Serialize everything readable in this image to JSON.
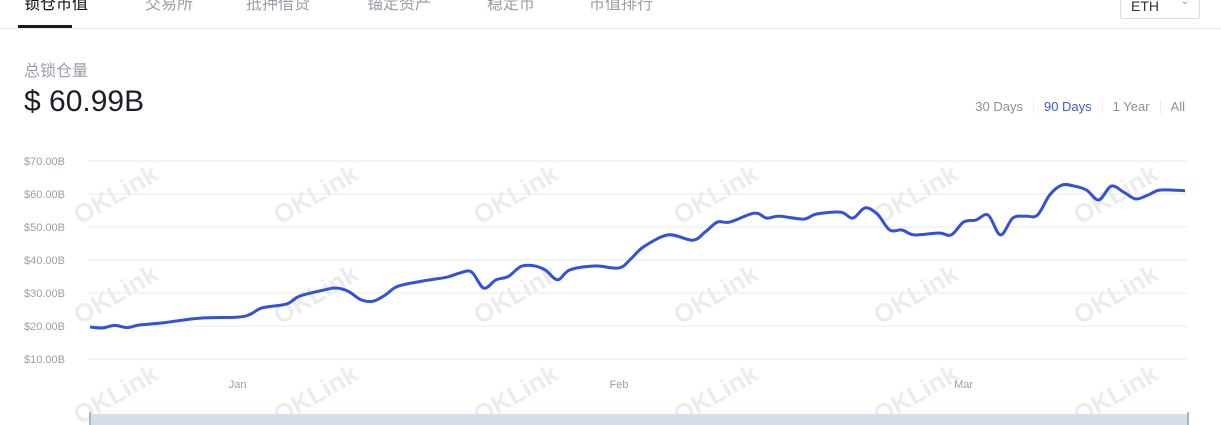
{
  "tabs": [
    {
      "label": "锁仓市值",
      "active": true
    },
    {
      "label": "交易所"
    },
    {
      "label": "抵押借贷"
    },
    {
      "label": "锚定资产"
    },
    {
      "label": "稳定币"
    },
    {
      "label": "市值排行"
    }
  ],
  "chain_select": {
    "value": "ETH",
    "icon": "chevron-down-icon"
  },
  "summary": {
    "label": "总锁仓量",
    "value": "$ 60.99B"
  },
  "ranges": [
    {
      "label": "30 Days"
    },
    {
      "label": "90 Days",
      "selected": true
    },
    {
      "label": "1 Year"
    },
    {
      "label": "All"
    }
  ],
  "watermark": "OKLink",
  "chart_data": {
    "type": "line",
    "title": "",
    "xlabel": "",
    "ylabel": "",
    "ylim": [
      10,
      70
    ],
    "xlim": [
      "Dec 20",
      "Mar 19"
    ],
    "y_ticks": [
      "$10.00B",
      "$20.00B",
      "$30.00B",
      "$40.00B",
      "$50.00B",
      "$60.00B",
      "$70.00B"
    ],
    "x_ticks": [
      "Jan",
      "Feb",
      "Mar"
    ],
    "grid": true,
    "color": "#3552d6",
    "unit": "USD billions",
    "points": [
      [
        "Dec 20",
        19.7
      ],
      [
        "Dec 21",
        19.4
      ],
      [
        "Dec 22",
        20.2
      ],
      [
        "Dec 23",
        19.5
      ],
      [
        "Dec 24",
        20.3
      ],
      [
        "Dec 26",
        21.0
      ],
      [
        "Dec 27",
        21.5
      ],
      [
        "Dec 29",
        22.4
      ],
      [
        "Jan 1",
        22.7
      ],
      [
        "Jan 2",
        23.5
      ],
      [
        "Jan 3",
        25.5
      ],
      [
        "Jan 5",
        26.7
      ],
      [
        "Jan 6",
        29.0
      ],
      [
        "Jan 8",
        30.9
      ],
      [
        "Jan 9",
        31.5
      ],
      [
        "Jan 10",
        30.5
      ],
      [
        "Jan 11",
        28.0
      ],
      [
        "Jan 12",
        27.5
      ],
      [
        "Jan 13",
        29.4
      ],
      [
        "Jan 14",
        32.0
      ],
      [
        "Jan 16",
        33.6
      ],
      [
        "Jan 18",
        34.8
      ],
      [
        "Jan 19",
        36.0
      ],
      [
        "Jan 20",
        36.4
      ],
      [
        "Jan 21",
        31.5
      ],
      [
        "Jan 22",
        34.0
      ],
      [
        "Jan 23",
        35.0
      ],
      [
        "Jan 24",
        38.0
      ],
      [
        "Jan 25",
        38.3
      ],
      [
        "Jan 26",
        37.0
      ],
      [
        "Jan 27",
        34.0
      ],
      [
        "Jan 28",
        37.0
      ],
      [
        "Jan 30",
        38.2
      ],
      [
        "Feb 1",
        37.6
      ],
      [
        "Feb 2",
        40.5
      ],
      [
        "Feb 3",
        44.0
      ],
      [
        "Feb 5",
        47.6
      ],
      [
        "Feb 7",
        46.0
      ],
      [
        "Feb 8",
        48.5
      ],
      [
        "Feb 9",
        51.5
      ],
      [
        "Feb 10",
        51.5
      ],
      [
        "Feb 12",
        54.2
      ],
      [
        "Feb 13",
        52.7
      ],
      [
        "Feb 14",
        53.3
      ],
      [
        "Feb 16",
        52.4
      ],
      [
        "Feb 17",
        53.9
      ],
      [
        "Feb 19",
        54.5
      ],
      [
        "Feb 20",
        52.7
      ],
      [
        "Feb 21",
        55.8
      ],
      [
        "Feb 22",
        53.9
      ],
      [
        "Feb 23",
        49.1
      ],
      [
        "Feb 24",
        49.1
      ],
      [
        "Feb 25",
        47.6
      ],
      [
        "Feb 27",
        48.2
      ],
      [
        "Feb 28",
        47.6
      ],
      [
        "Mar 1",
        51.5
      ],
      [
        "Mar 2",
        52.1
      ],
      [
        "Mar 3",
        53.6
      ],
      [
        "Mar 4",
        47.6
      ],
      [
        "Mar 5",
        52.7
      ],
      [
        "Mar 6",
        53.3
      ],
      [
        "Mar 7",
        53.6
      ],
      [
        "Mar 8",
        59.7
      ],
      [
        "Mar 9",
        62.7
      ],
      [
        "Mar 10",
        62.4
      ],
      [
        "Mar 11",
        61.2
      ],
      [
        "Mar 12",
        58.2
      ],
      [
        "Mar 13",
        62.4
      ],
      [
        "Mar 14",
        60.6
      ],
      [
        "Mar 15",
        58.5
      ],
      [
        "Mar 16",
        59.7
      ],
      [
        "Mar 17",
        61.2
      ],
      [
        "Mar 19",
        61.0
      ]
    ]
  }
}
